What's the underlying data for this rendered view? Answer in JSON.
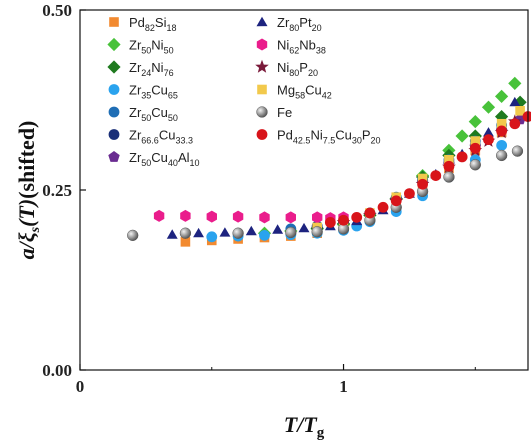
{
  "chart_data": {
    "type": "scatter",
    "title": "",
    "xlabel": "T/Tg",
    "ylabel": "a/ξs(T)(shifted)",
    "xlim": [
      0,
      1.7
    ],
    "ylim": [
      0,
      0.5
    ],
    "xticks": [
      "0",
      "1"
    ],
    "yticks": [
      "0.00",
      "0.25",
      "0.50"
    ],
    "grid": false,
    "legend_position": "top-left",
    "series": [
      {
        "name": "Pd82Si18",
        "label_html": "Pd<sub>82</sub>Si<sub>18</sub>",
        "marker": "square",
        "color": "#f28a30",
        "x": [
          0.4,
          0.5,
          0.6,
          0.7,
          0.8,
          0.9,
          1.0,
          1.1,
          1.2,
          1.3,
          1.4,
          1.5,
          1.6
        ],
        "y": [
          0.178,
          0.18,
          0.182,
          0.184,
          0.186,
          0.19,
          0.198,
          0.212,
          0.23,
          0.255,
          0.28,
          0.305,
          0.33
        ]
      },
      {
        "name": "Zr50Ni50",
        "label_html": "Zr<sub>50</sub>Ni<sub>50</sub>",
        "marker": "diamond",
        "color": "#48c23a",
        "x": [
          0.7,
          0.8,
          0.9,
          1.0,
          1.1,
          1.2,
          1.3,
          1.4,
          1.45,
          1.5,
          1.55,
          1.6,
          1.65
        ],
        "y": [
          0.19,
          0.193,
          0.196,
          0.202,
          0.215,
          0.238,
          0.27,
          0.305,
          0.325,
          0.345,
          0.365,
          0.38,
          0.398
        ]
      },
      {
        "name": "Zr24Ni76",
        "label_html": "Zr<sub>24</sub>Ni<sub>76</sub>",
        "marker": "diamond",
        "color": "#1f7a1f",
        "x": [
          0.9,
          1.0,
          1.1,
          1.2,
          1.3,
          1.4,
          1.5,
          1.6,
          1.67
        ],
        "y": [
          0.197,
          0.203,
          0.215,
          0.238,
          0.268,
          0.298,
          0.325,
          0.352,
          0.372
        ]
      },
      {
        "name": "Zr35Cu65",
        "label_html": "Zr<sub>35</sub>Cu<sub>65</sub>",
        "marker": "circle",
        "color": "#2aa3ee",
        "x": [
          0.5,
          0.6,
          0.7,
          0.8,
          0.9,
          1.0,
          1.05,
          1.1,
          1.2,
          1.3,
          1.4,
          1.5,
          1.6
        ],
        "y": [
          0.185,
          0.186,
          0.187,
          0.188,
          0.19,
          0.194,
          0.2,
          0.206,
          0.22,
          0.242,
          0.268,
          0.292,
          0.312
        ]
      },
      {
        "name": "Zr50Cu50",
        "label_html": "Zr<sub>50</sub>Cu<sub>50</sub>",
        "marker": "circle",
        "color": "#1f6eb5",
        "x": [
          0.8,
          0.9,
          1.0,
          1.1,
          1.2,
          1.3,
          1.4,
          1.5,
          1.6
        ],
        "y": [
          0.196,
          0.2,
          0.206,
          0.218,
          0.24,
          0.265,
          0.292,
          0.318,
          0.34
        ]
      },
      {
        "name": "Zr66.6Cu33.3",
        "label_html": "Zr<sub>66.6</sub>Cu<sub>33.3</sub>",
        "marker": "circle",
        "color": "#1a2f78",
        "x": [
          0.9,
          1.0,
          1.1,
          1.2,
          1.3,
          1.4,
          1.5,
          1.6
        ],
        "y": [
          0.199,
          0.205,
          0.218,
          0.238,
          0.262,
          0.288,
          0.312,
          0.334
        ]
      },
      {
        "name": "Zr50Cu40Al10",
        "label_html": "Zr<sub>50</sub>Cu<sub>40</sub>Al<sub>10</sub>",
        "marker": "pentagon",
        "color": "#6a2c91",
        "x": [
          1.0,
          1.1,
          1.2,
          1.3,
          1.4,
          1.5,
          1.6,
          1.67
        ],
        "y": [
          0.205,
          0.216,
          0.236,
          0.26,
          0.285,
          0.31,
          0.332,
          0.348
        ]
      },
      {
        "name": "Zr80Pt20",
        "label_html": "Zr<sub>80</sub>Pt<sub>20</sub>",
        "marker": "triangle",
        "color": "#1d237f",
        "x": [
          0.35,
          0.45,
          0.55,
          0.65,
          0.75,
          0.85,
          0.95,
          1.05,
          1.15,
          1.25,
          1.35,
          1.45,
          1.55,
          1.65
        ],
        "y": [
          0.188,
          0.19,
          0.191,
          0.193,
          0.195,
          0.197,
          0.2,
          0.207,
          0.222,
          0.245,
          0.272,
          0.3,
          0.33,
          0.372
        ]
      },
      {
        "name": "Ni62Nb38",
        "label_html": "Ni<sub>62</sub>Nb<sub>38</sub>",
        "marker": "hexagon",
        "color": "#ea1d8c",
        "x": [
          0.3,
          0.4,
          0.5,
          0.6,
          0.7,
          0.8,
          0.9,
          0.95,
          1.0
        ],
        "y": [
          0.214,
          0.214,
          0.213,
          0.213,
          0.212,
          0.212,
          0.212,
          0.211,
          0.212
        ]
      },
      {
        "name": "Ni80P20",
        "label_html": "Ni<sub>80</sub>P<sub>20</sub>",
        "marker": "star",
        "color": "#7a1a3a",
        "x": [
          1.0,
          1.1,
          1.2,
          1.3,
          1.4,
          1.5,
          1.55,
          1.6,
          1.65
        ],
        "y": [
          0.205,
          0.215,
          0.234,
          0.258,
          0.282,
          0.305,
          0.318,
          0.33,
          0.345
        ]
      },
      {
        "name": "Mg58Cu42",
        "label_html": "Mg<sub>58</sub>Cu<sub>42</sub>",
        "marker": "square",
        "color": "#f2c94c",
        "x": [
          0.9,
          1.0,
          1.1,
          1.2,
          1.3,
          1.4,
          1.5,
          1.6,
          1.67
        ],
        "y": [
          0.198,
          0.205,
          0.218,
          0.24,
          0.266,
          0.292,
          0.318,
          0.342,
          0.36
        ]
      },
      {
        "name": "Fe",
        "label_html": "Fe",
        "marker": "sphere",
        "color": "#8a8a8a",
        "x": [
          0.2,
          0.4,
          0.6,
          0.8,
          0.9,
          1.0,
          1.1,
          1.2,
          1.3,
          1.4,
          1.5,
          1.6,
          1.66
        ],
        "y": [
          0.187,
          0.19,
          0.19,
          0.191,
          0.192,
          0.196,
          0.208,
          0.226,
          0.248,
          0.268,
          0.285,
          0.298,
          0.304
        ]
      },
      {
        "name": "Pd42.5Ni7.5Cu30P20",
        "label_html": "Pd<sub>42.5</sub>Ni<sub>7.5</sub>Cu<sub>30</sub>P<sub>20</sub>",
        "marker": "circle",
        "color": "#d8141a",
        "x": [
          0.95,
          1.0,
          1.05,
          1.1,
          1.15,
          1.2,
          1.25,
          1.3,
          1.35,
          1.4,
          1.45,
          1.5,
          1.55,
          1.6,
          1.65,
          1.7
        ],
        "y": [
          0.205,
          0.208,
          0.212,
          0.218,
          0.226,
          0.235,
          0.245,
          0.258,
          0.27,
          0.283,
          0.296,
          0.308,
          0.32,
          0.332,
          0.342,
          0.352
        ]
      }
    ]
  }
}
